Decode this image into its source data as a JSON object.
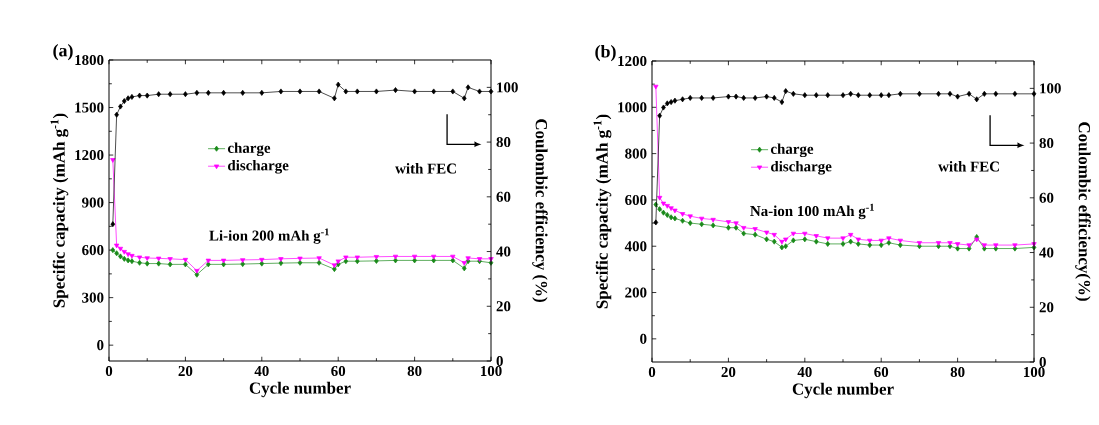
{
  "chart_data": [
    {
      "type": "line",
      "title": "(a)",
      "xlabel": "Cycle number",
      "ylabel": "Specific capacity (mAh g$^{-1}$)",
      "y2label": "Coulombic efficiency (%)",
      "annotations": [
        "with FEC",
        "Li-ion  200 mAh g$^{-1}$"
      ],
      "x": [
        1,
        2,
        3,
        4,
        5,
        6,
        8,
        10,
        13,
        16,
        20,
        23,
        26,
        30,
        35,
        40,
        45,
        50,
        55,
        59,
        60,
        62,
        65,
        70,
        75,
        80,
        85,
        90,
        93,
        94,
        97,
        100
      ],
      "series": [
        {
          "name": "charge",
          "color": "#1a8a1a",
          "marker": "diamond",
          "values": [
            600,
            580,
            560,
            545,
            535,
            530,
            520,
            515,
            515,
            510,
            510,
            445,
            510,
            510,
            512,
            515,
            518,
            520,
            520,
            480,
            510,
            530,
            530,
            532,
            535,
            535,
            535,
            535,
            485,
            530,
            530,
            520
          ]
        },
        {
          "name": "discharge",
          "color": "#ff00ff",
          "marker": "triangle",
          "values": [
            1170,
            630,
            610,
            590,
            575,
            565,
            555,
            550,
            548,
            545,
            540,
            470,
            535,
            535,
            538,
            540,
            545,
            548,
            550,
            505,
            530,
            555,
            555,
            558,
            560,
            560,
            560,
            560,
            520,
            550,
            545,
            545
          ]
        },
        {
          "color": "#000000",
          "marker": "diamond",
          "axis": "y2",
          "values": [
            50,
            90,
            93,
            95,
            96,
            96.5,
            97,
            97,
            97.5,
            97.5,
            97.5,
            98,
            98,
            98,
            98,
            98,
            98.5,
            98.5,
            98.5,
            96,
            101,
            98.5,
            98.5,
            98.5,
            99,
            98.5,
            98.5,
            98.5,
            96,
            100,
            98.5,
            98.5
          ]
        }
      ],
      "xlim": [
        0,
        100
      ],
      "xticks": [
        0,
        20,
        40,
        60,
        80,
        100
      ],
      "ylim": [
        -100,
        1800
      ],
      "yticks": [
        0,
        300,
        600,
        900,
        1200,
        1500,
        1800
      ],
      "y2lim": [
        0,
        110
      ],
      "y2ticks": [
        0,
        20,
        40,
        60,
        80,
        100
      ],
      "legend": "center"
    },
    {
      "type": "line",
      "title": "(b)",
      "xlabel": "Cycle number",
      "ylabel": "Specific capacity (mAh g$^{-1}$)",
      "y2label": "Coulombic efficiency(%)",
      "annotations": [
        "with FEC",
        "Na-ion  100 mAh g$^{-1}$"
      ],
      "x": [
        1,
        2,
        3,
        4,
        5,
        6,
        8,
        10,
        13,
        16,
        20,
        22,
        24,
        27,
        30,
        32,
        34,
        35,
        37,
        40,
        43,
        46,
        50,
        52,
        54,
        57,
        60,
        62,
        65,
        70,
        75,
        78,
        80,
        83,
        85,
        87,
        90,
        95,
        100
      ],
      "series": [
        {
          "name": "charge",
          "color": "#1a8a1a",
          "marker": "diamond",
          "values": [
            580,
            560,
            545,
            535,
            525,
            520,
            510,
            500,
            495,
            490,
            480,
            480,
            455,
            450,
            430,
            420,
            395,
            400,
            425,
            430,
            420,
            410,
            410,
            420,
            410,
            405,
            405,
            415,
            405,
            400,
            400,
            400,
            390,
            390,
            440,
            390,
            390,
            390,
            395
          ]
        },
        {
          "name": "discharge",
          "color": "#ff00ff",
          "marker": "triangle",
          "values": [
            1090,
            610,
            585,
            575,
            565,
            555,
            540,
            530,
            520,
            515,
            505,
            500,
            480,
            475,
            460,
            450,
            420,
            430,
            455,
            455,
            445,
            435,
            435,
            450,
            430,
            425,
            425,
            435,
            425,
            415,
            415,
            415,
            410,
            405,
            430,
            405,
            405,
            405,
            410
          ]
        },
        {
          "color": "#000000",
          "marker": "diamond",
          "axis": "y2",
          "values": [
            51,
            90,
            93,
            94.5,
            95,
            95.5,
            96,
            96.5,
            96.5,
            96.5,
            97,
            97,
            96.5,
            96.5,
            97,
            96.5,
            95,
            99,
            98,
            97.5,
            97.5,
            97.5,
            97.5,
            98,
            97.5,
            97.5,
            97.5,
            97.5,
            98,
            98,
            98,
            98,
            97,
            98,
            96,
            98,
            98,
            98,
            98
          ]
        }
      ],
      "xlim": [
        0,
        100
      ],
      "xticks": [
        0,
        20,
        40,
        60,
        80,
        100
      ],
      "ylim": [
        -100,
        1200
      ],
      "yticks": [
        0,
        200,
        400,
        600,
        800,
        1000,
        1200
      ],
      "y2lim": [
        0,
        110
      ],
      "y2ticks": [
        0,
        20,
        40,
        60,
        80,
        100
      ],
      "legend": "center"
    }
  ]
}
